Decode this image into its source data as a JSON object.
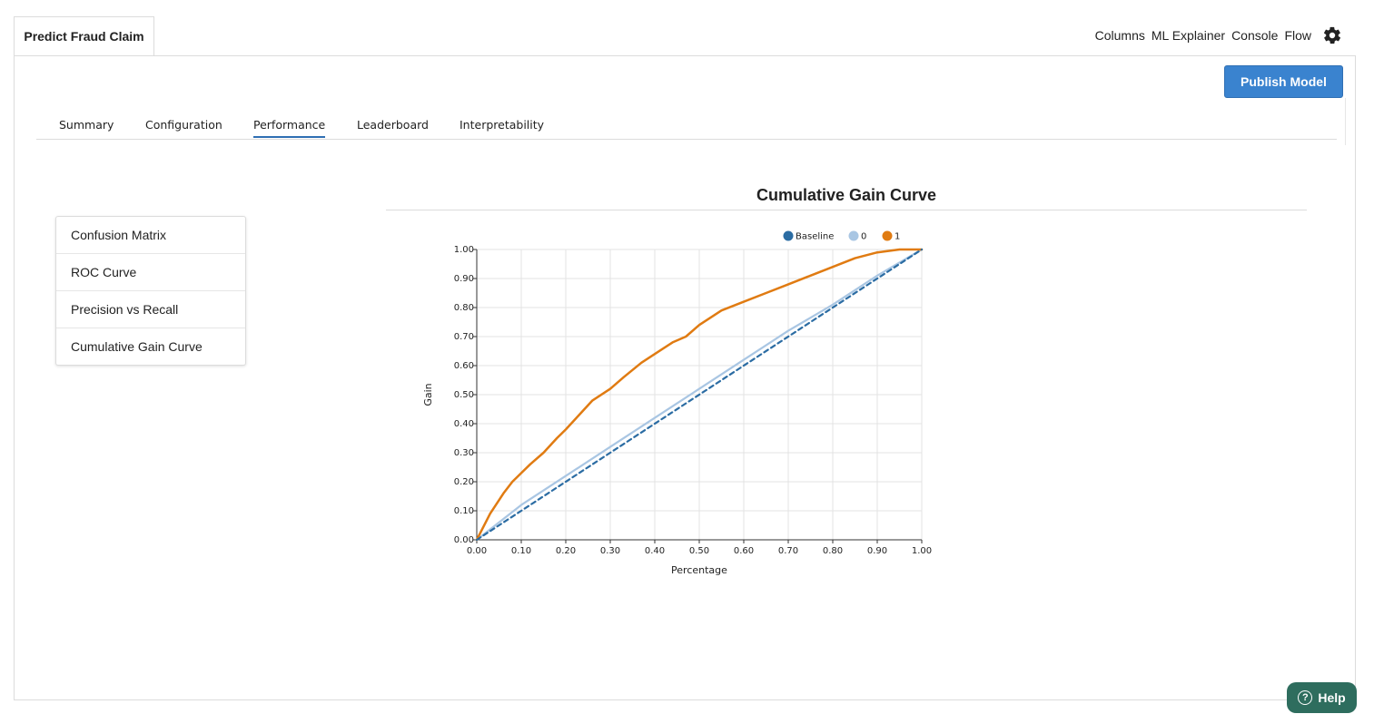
{
  "doc_tab": {
    "label": "Predict Fraud Claim"
  },
  "topnav": {
    "items": [
      "Columns",
      "ML Explainer",
      "Console",
      "Flow"
    ],
    "settings_icon": "gear-icon"
  },
  "publish_button": {
    "label": "Publish Model",
    "color": "#3a83cf"
  },
  "subtabs": {
    "items": [
      "Summary",
      "Configuration",
      "Performance",
      "Leaderboard",
      "Interpretability"
    ],
    "active": "Performance"
  },
  "metrics": {
    "items": [
      "Confusion Matrix",
      "ROC Curve",
      "Precision vs Recall",
      "Cumulative Gain Curve"
    ]
  },
  "help_button": {
    "label": "Help",
    "icon": "question-circle-icon"
  },
  "chart_data": {
    "type": "line",
    "title": "Cumulative Gain Curve",
    "xlabel": "Percentage",
    "ylabel": "Gain",
    "xlim": [
      0,
      1
    ],
    "ylim": [
      0,
      1
    ],
    "grid": true,
    "legend_position": "top-right",
    "x_ticks": [
      "0.00",
      "0.10",
      "0.20",
      "0.30",
      "0.40",
      "0.50",
      "0.60",
      "0.70",
      "0.80",
      "0.90",
      "1.00"
    ],
    "y_ticks": [
      "0.00",
      "0.10",
      "0.20",
      "0.30",
      "0.40",
      "0.50",
      "0.60",
      "0.70",
      "0.80",
      "0.90",
      "1.00"
    ],
    "series": [
      {
        "name": "Baseline",
        "color": "#2b6ca3",
        "style": "dashed",
        "x": [
          0,
          1
        ],
        "y": [
          0,
          1
        ]
      },
      {
        "name": "0",
        "color": "#a9c6e3",
        "style": "solid",
        "x": [
          0,
          0.1,
          0.2,
          0.3,
          0.4,
          0.5,
          0.6,
          0.7,
          0.8,
          0.9,
          1.0
        ],
        "y": [
          0,
          0.12,
          0.22,
          0.32,
          0.42,
          0.52,
          0.62,
          0.72,
          0.81,
          0.91,
          1.0
        ]
      },
      {
        "name": "1",
        "color": "#e07b12",
        "style": "solid",
        "x": [
          0,
          0.03,
          0.06,
          0.08,
          0.1,
          0.12,
          0.15,
          0.18,
          0.2,
          0.23,
          0.26,
          0.3,
          0.33,
          0.37,
          0.4,
          0.44,
          0.47,
          0.5,
          0.55,
          0.6,
          0.65,
          0.7,
          0.75,
          0.8,
          0.85,
          0.9,
          0.95,
          1.0
        ],
        "y": [
          0,
          0.09,
          0.16,
          0.2,
          0.23,
          0.26,
          0.3,
          0.35,
          0.38,
          0.43,
          0.48,
          0.52,
          0.56,
          0.61,
          0.64,
          0.68,
          0.7,
          0.74,
          0.79,
          0.82,
          0.85,
          0.88,
          0.91,
          0.94,
          0.97,
          0.99,
          1.0,
          1.0
        ]
      }
    ]
  }
}
